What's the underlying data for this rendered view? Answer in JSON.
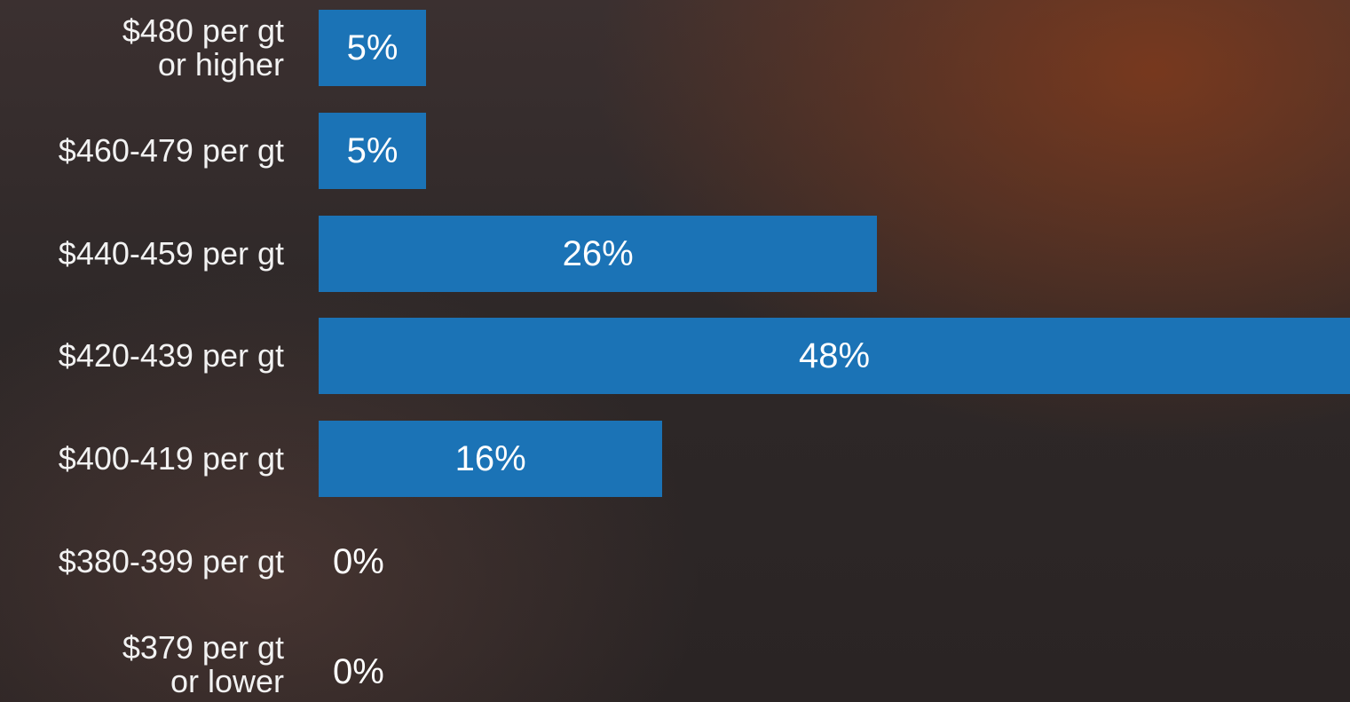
{
  "chart_data": {
    "type": "barh",
    "categories": [
      "$480 per gt\nor higher",
      "$460-479 per gt",
      "$440-459 per gt",
      "$420-439 per gt",
      "$400-419 per gt",
      "$380-399 per gt",
      "$379 per gt\nor lower"
    ],
    "values": [
      5,
      5,
      26,
      48,
      16,
      0,
      0
    ],
    "value_labels": [
      "5%",
      "5%",
      "26%",
      "48%",
      "16%",
      "0%",
      "0%"
    ],
    "color": "#1b73b6",
    "xlim": [
      0,
      48
    ]
  }
}
